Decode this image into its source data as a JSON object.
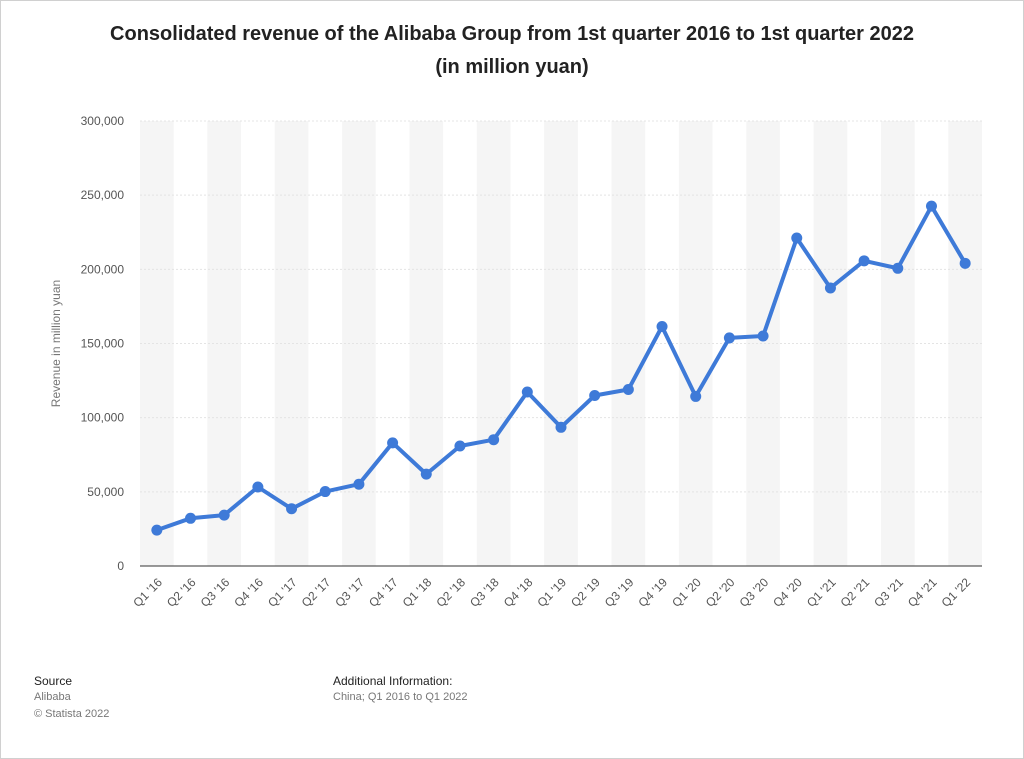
{
  "title_line1": "Consolidated revenue of the Alibaba Group from 1st quarter 2016 to 1st quarter 2022",
  "title_line2": "(in million yuan)",
  "footer": {
    "source_label": "Source",
    "source_value": "Alibaba",
    "copyright": "© Statista 2022",
    "additional_label": "Additional Information:",
    "additional_value": "China; Q1 2016 to Q1 2022"
  },
  "colors": {
    "line": "#3e7ad8",
    "band": "#f5f5f5",
    "grid": "#e4e4e4",
    "axis": "#333333",
    "tick_text": "#555555"
  },
  "chart_data": {
    "type": "line",
    "title": "Consolidated revenue of the Alibaba Group from 1st quarter 2016 to 1st quarter 2022 (in million yuan)",
    "xlabel": "",
    "ylabel": "Revenue in million yuan",
    "ylim": [
      0,
      300000
    ],
    "yticks": [
      0,
      50000,
      100000,
      150000,
      200000,
      250000,
      300000
    ],
    "ytick_labels": [
      "0",
      "50,000",
      "100,000",
      "150,000",
      "200,000",
      "250,000",
      "300,000"
    ],
    "grid": true,
    "legend": "none",
    "categories": [
      "Q1 '16",
      "Q2 '16",
      "Q3 '16",
      "Q4 '16",
      "Q1 '17",
      "Q2 '17",
      "Q3 '17",
      "Q4 '17",
      "Q1 '18",
      "Q2 '18",
      "Q3 '18",
      "Q4 '18",
      "Q1 '19",
      "Q2 '19",
      "Q3 '19",
      "Q4 '19",
      "Q1 '20",
      "Q2 '20",
      "Q3 '20",
      "Q4 '20",
      "Q1 '21",
      "Q2 '21",
      "Q3 '21",
      "Q4 '21",
      "Q1 '22"
    ],
    "series": [
      {
        "values": [
          24184,
          32154,
          34292,
          53248,
          38579,
          50184,
          55122,
          83028,
          61932,
          80920,
          85148,
          117278,
          93498,
          114924,
          119017,
          161456,
          114314,
          153751,
          155059,
          221084,
          187395,
          205740,
          200690,
          242580,
          204052
        ]
      }
    ]
  }
}
